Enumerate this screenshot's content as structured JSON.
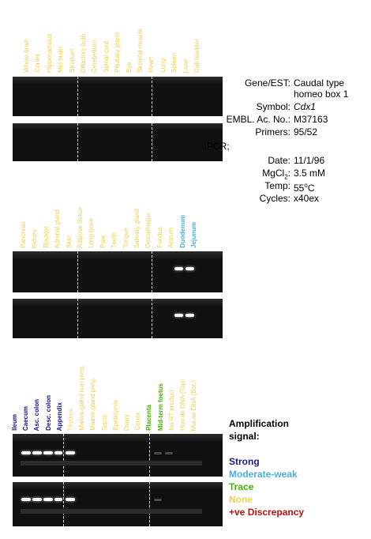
{
  "colors": {
    "strong": "#1a1a8c",
    "moderate_weak": "#4ab0e0",
    "trace": "#44b400",
    "none": "#f0d050",
    "discrepancy": "#c01010"
  },
  "panel1": {
    "lanes": [
      {
        "label": "Whole brain",
        "signal": "none"
      },
      {
        "label": "Cortex",
        "signal": "none"
      },
      {
        "label": "Hippocampus",
        "signal": "none"
      },
      {
        "label": "Mid brain",
        "signal": "none"
      },
      {
        "label": "Striatum",
        "signal": "none"
      },
      {
        "label": "Olfactory bulb",
        "signal": "none"
      },
      {
        "label": "Cerebellum",
        "signal": "none"
      },
      {
        "label": "Spinal cord",
        "signal": "none"
      },
      {
        "label": "Pituitary gland",
        "signal": "none"
      },
      {
        "label": "Eye",
        "signal": "none"
      },
      {
        "label": "Skeletal muscle",
        "signal": "none"
      },
      {
        "label": "Heart",
        "signal": "none"
      },
      {
        "label": "Lung",
        "signal": "none"
      },
      {
        "label": "Spleen",
        "signal": "none"
      },
      {
        "label": "Liver",
        "signal": "none"
      },
      {
        "label": "Gall bladder",
        "signal": "none"
      }
    ]
  },
  "panel2": {
    "lanes": [
      {
        "label": "Pancreas",
        "signal": "none"
      },
      {
        "label": "Kidney",
        "signal": "none"
      },
      {
        "label": "Bladder",
        "signal": "none"
      },
      {
        "label": "Adrenal gland",
        "signal": "none"
      },
      {
        "label": "Skin",
        "signal": "none"
      },
      {
        "label": "Adipose tissue",
        "signal": "none"
      },
      {
        "label": "Long bone",
        "signal": "none"
      },
      {
        "label": "Paw",
        "signal": "none"
      },
      {
        "label": "Teeth",
        "signal": "none"
      },
      {
        "label": "Tongue",
        "signal": "none"
      },
      {
        "label": "Salivary gland",
        "signal": "none"
      },
      {
        "label": "Oesophagus",
        "signal": "none"
      },
      {
        "label": "Fundus",
        "signal": "none"
      },
      {
        "label": "Antrum",
        "signal": "none"
      },
      {
        "label": "Duodenum",
        "signal": "moderate_weak"
      },
      {
        "label": "Jejunum",
        "signal": "moderate_weak"
      }
    ]
  },
  "panel3": {
    "lanes": [
      {
        "label": "Ileum",
        "signal": "strong"
      },
      {
        "label": "Caecum",
        "signal": "strong"
      },
      {
        "label": "Asc. colon",
        "signal": "strong"
      },
      {
        "label": "Desc. colon",
        "signal": "strong"
      },
      {
        "label": "Appendix",
        "signal": "strong"
      },
      {
        "label": "Thymus",
        "signal": "none"
      },
      {
        "label": "Mamm.gland non-preg.",
        "signal": "none"
      },
      {
        "label": "Mamm.gland preg.",
        "signal": "none"
      },
      {
        "label": "Testis",
        "signal": "none"
      },
      {
        "label": "Epididymis",
        "signal": "none"
      },
      {
        "label": "Ovary",
        "signal": "none"
      },
      {
        "label": "Cervix",
        "signal": "none"
      },
      {
        "label": "Placenta",
        "signal": "trace"
      },
      {
        "label": "Mid-term foetus",
        "signal": "trace"
      },
      {
        "label": "No RT product",
        "signal": "none"
      },
      {
        "label": "Human DNA (Top)",
        "signal": "none"
      },
      {
        "label": "Mouse DNA (Bot.)",
        "signal": "none"
      }
    ]
  },
  "info": {
    "gene_key": "Gene/EST:",
    "gene_val1": "Caudal type",
    "gene_val2": "homeo box 1",
    "symbol_key": "Symbol:",
    "symbol_val": "Cdx1",
    "embl_key": "EMBL. Ac. No.:",
    "embl_val": "M37163",
    "primers_key": "Primers:",
    "primers_val": "95/52",
    "pcr_key": "PCR;",
    "date_key": "Date:",
    "date_val": "11/1/96",
    "mgcl_key": "MgCl",
    "mgcl_sub": "2",
    "mgcl_colon": ":",
    "mgcl_val": "3.5 mM",
    "temp_key": "Temp:",
    "temp_val": "55",
    "temp_sup": "o",
    "temp_unit": "C",
    "cycles_key": "Cycles:",
    "cycles_val": "x40ex"
  },
  "legend": {
    "title1": "Amplification",
    "title2": "signal:",
    "strong": "Strong",
    "moderate": "Moderate-weak",
    "trace": "Trace",
    "none": "None",
    "discrepancy": "+ve Discrepancy"
  }
}
